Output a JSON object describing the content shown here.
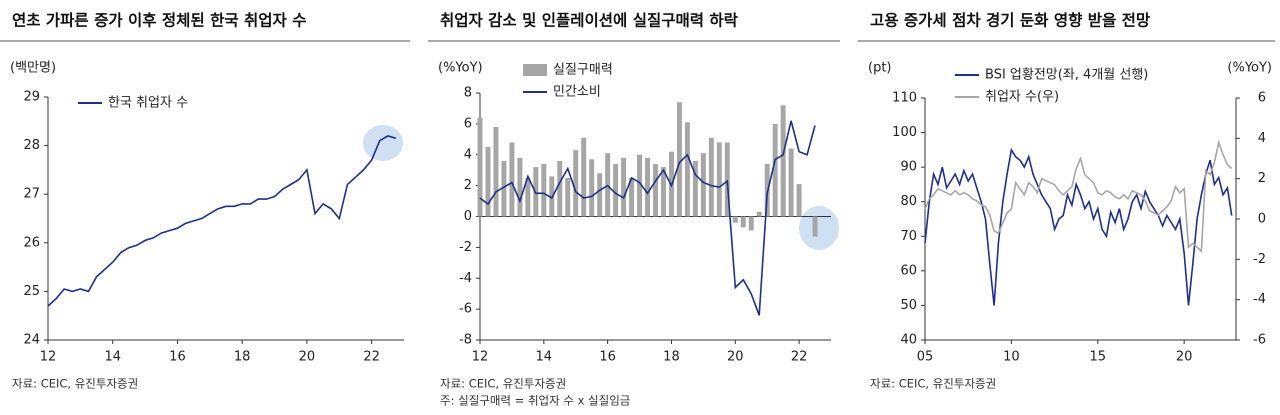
{
  "chart_data": [
    {
      "type": "line",
      "title": "연초 가파른 증가 이후 정체된 한국 취업자 수",
      "y_label": "(백만명)",
      "source": "자료: CEIC, 유진투자증권",
      "legend": "upper left",
      "x": [
        12.0,
        12.25,
        12.5,
        12.75,
        13.0,
        13.25,
        13.5,
        13.75,
        14.0,
        14.25,
        14.5,
        14.75,
        15.0,
        15.25,
        15.5,
        15.75,
        16.0,
        16.25,
        16.5,
        16.75,
        17.0,
        17.25,
        17.5,
        17.75,
        18.0,
        18.25,
        18.5,
        18.75,
        19.0,
        19.25,
        19.5,
        19.75,
        20.0,
        20.25,
        20.5,
        20.75,
        21.0,
        21.25,
        21.5,
        21.75,
        22.0,
        22.25,
        22.5,
        22.75
      ],
      "series": [
        {
          "name": "한국 취업자 수",
          "color": "#1f2f8c",
          "values": [
            24.7,
            24.85,
            25.05,
            25.0,
            25.05,
            25.0,
            25.3,
            25.45,
            25.6,
            25.8,
            25.9,
            25.95,
            26.05,
            26.1,
            26.2,
            26.25,
            26.3,
            26.4,
            26.45,
            26.5,
            26.6,
            26.7,
            26.75,
            26.75,
            26.8,
            26.8,
            26.9,
            26.9,
            26.95,
            27.1,
            27.2,
            27.3,
            27.5,
            26.6,
            26.8,
            26.7,
            26.5,
            27.2,
            27.35,
            27.5,
            27.7,
            28.1,
            28.2,
            28.15
          ]
        }
      ],
      "xlim": [
        12,
        23
      ],
      "xticks": [
        12,
        14,
        16,
        18,
        20,
        22
      ],
      "ylim": [
        24,
        29
      ],
      "yticks": [
        24,
        25,
        26,
        27,
        28,
        29
      ]
    },
    {
      "type": "bar",
      "title": "취업자 감소 및 인플레이션에 실질구매력 하락",
      "y_label": "(%YoY)",
      "source": "자료: CEIC, 유진투자증권",
      "note": "주: 실질구매력 = 취업자 수 x 실질임금",
      "legend": "upper left",
      "x": [
        12.0,
        12.25,
        12.5,
        12.75,
        13.0,
        13.25,
        13.5,
        13.75,
        14.0,
        14.25,
        14.5,
        14.75,
        15.0,
        15.25,
        15.5,
        15.75,
        16.0,
        16.25,
        16.5,
        16.75,
        17.0,
        17.25,
        17.5,
        17.75,
        18.0,
        18.25,
        18.5,
        18.75,
        19.0,
        19.25,
        19.5,
        19.75,
        20.0,
        20.25,
        20.5,
        20.75,
        21.0,
        21.25,
        21.5,
        21.75,
        22.0,
        22.25,
        22.5
      ],
      "series": [
        {
          "name": "실질구매력",
          "type": "bar",
          "color": "#a6a6a6",
          "values": [
            6.4,
            4.5,
            5.8,
            3.6,
            4.8,
            3.8,
            2.5,
            3.2,
            3.4,
            2.6,
            3.6,
            2.5,
            4.3,
            5.1,
            3.7,
            2.8,
            4.1,
            3.4,
            3.8,
            2.5,
            4.0,
            3.8,
            3.4,
            3.2,
            4.2,
            7.4,
            6.1,
            3.6,
            4.1,
            5.1,
            4.8,
            4.8,
            -0.4,
            -0.7,
            -0.9,
            0.3,
            3.4,
            6.0,
            7.2,
            4.4,
            2.1,
            0.0,
            -1.3
          ]
        },
        {
          "name": "민간소비",
          "type": "line",
          "color": "#1f2f8c",
          "values": [
            1.2,
            0.8,
            1.6,
            1.9,
            2.2,
            1.0,
            2.6,
            1.5,
            1.5,
            1.2,
            2.2,
            3.1,
            1.6,
            1.2,
            1.3,
            1.7,
            2.0,
            1.5,
            1.2,
            2.5,
            2.2,
            1.5,
            2.3,
            3.0,
            2.0,
            3.5,
            4.0,
            2.7,
            2.2,
            2.0,
            1.9,
            2.3,
            -4.6,
            -4.1,
            -5.0,
            -6.4,
            1.5,
            3.7,
            4.0,
            6.2,
            4.2,
            4.0,
            5.9
          ]
        }
      ],
      "xlim": [
        12,
        23
      ],
      "xticks": [
        12,
        14,
        16,
        18,
        20,
        22
      ],
      "ylim": [
        -8,
        8
      ],
      "yticks": [
        -8,
        -6,
        -4,
        -2,
        0,
        2,
        4,
        6,
        8
      ]
    },
    {
      "type": "line",
      "title": "고용 증가세 점차 경기 둔화 영향 받을 전망",
      "y_label": "(pt)",
      "y2_label": "(%YoY)",
      "source": "자료: CEIC, 유진투자증권",
      "legend": "upper left",
      "x": [
        5.0,
        5.25,
        5.5,
        5.75,
        6.0,
        6.25,
        6.5,
        6.75,
        7.0,
        7.25,
        7.5,
        7.75,
        8.0,
        8.25,
        8.5,
        8.75,
        9.0,
        9.25,
        9.5,
        9.75,
        10.0,
        10.25,
        10.5,
        10.75,
        11.0,
        11.25,
        11.5,
        11.75,
        12.0,
        12.25,
        12.5,
        12.75,
        13.0,
        13.25,
        13.5,
        13.75,
        14.0,
        14.25,
        14.5,
        14.75,
        15.0,
        15.25,
        15.5,
        15.75,
        16.0,
        16.25,
        16.5,
        16.75,
        17.0,
        17.25,
        17.5,
        17.75,
        18.0,
        18.25,
        18.5,
        18.75,
        19.0,
        19.25,
        19.5,
        19.75,
        20.0,
        20.25,
        20.5,
        20.75,
        21.0,
        21.25,
        21.5,
        21.75,
        22.0,
        22.25,
        22.5,
        22.75
      ],
      "series": [
        {
          "name": "BSI 업황전망(좌, 4개월 선행)",
          "color": "#1f2f8c",
          "values": [
            68,
            80,
            88,
            85,
            90,
            84,
            86,
            88,
            85,
            89,
            86,
            88,
            84,
            80,
            75,
            62,
            50,
            68,
            80,
            88,
            95,
            93,
            92,
            90,
            93,
            88,
            85,
            82,
            80,
            78,
            72,
            75,
            76,
            82,
            79,
            85,
            82,
            78,
            80,
            75,
            78,
            72,
            70,
            77,
            74,
            78,
            72,
            75,
            80,
            82,
            78,
            83,
            80,
            78,
            76,
            73,
            76,
            74,
            72,
            75,
            65,
            50,
            62,
            75,
            82,
            88,
            92,
            85,
            87,
            82,
            84,
            76
          ]
        },
        {
          "name": "취업자 수(우)",
          "color": "#a6a6a6",
          "axis": "y2",
          "values": [
            0.5,
            1.0,
            1.2,
            1.5,
            1.4,
            1.3,
            1.2,
            1.4,
            1.2,
            1.3,
            1.2,
            1.0,
            0.9,
            0.7,
            0.6,
            0.2,
            -0.6,
            -0.7,
            -0.2,
            0.3,
            0.5,
            1.8,
            1.5,
            1.2,
            1.8,
            1.6,
            1.3,
            2.0,
            1.9,
            1.8,
            1.7,
            1.4,
            1.2,
            1.4,
            1.6,
            2.5,
            3.0,
            2.2,
            2.0,
            1.8,
            1.3,
            1.2,
            1.4,
            1.3,
            1.1,
            1.0,
            1.2,
            1.0,
            1.4,
            1.3,
            1.2,
            0.9,
            0.4,
            0.3,
            0.2,
            0.4,
            0.6,
            0.9,
            1.6,
            1.3,
            1.5,
            -1.4,
            -1.2,
            -1.4,
            -1.6,
            2.4,
            2.2,
            2.8,
            3.8,
            3.2,
            2.7,
            2.5
          ]
        }
      ],
      "xlim": [
        5,
        23
      ],
      "xticks": [
        {
          "value": 5,
          "label": "05"
        },
        10,
        15,
        20
      ],
      "ylim": [
        40,
        110
      ],
      "yticks": [
        40,
        50,
        60,
        70,
        80,
        90,
        100,
        110
      ],
      "y2lim": [
        -6,
        6
      ],
      "y2ticks": [
        -6,
        -4,
        -2,
        0,
        2,
        4,
        6
      ]
    }
  ]
}
